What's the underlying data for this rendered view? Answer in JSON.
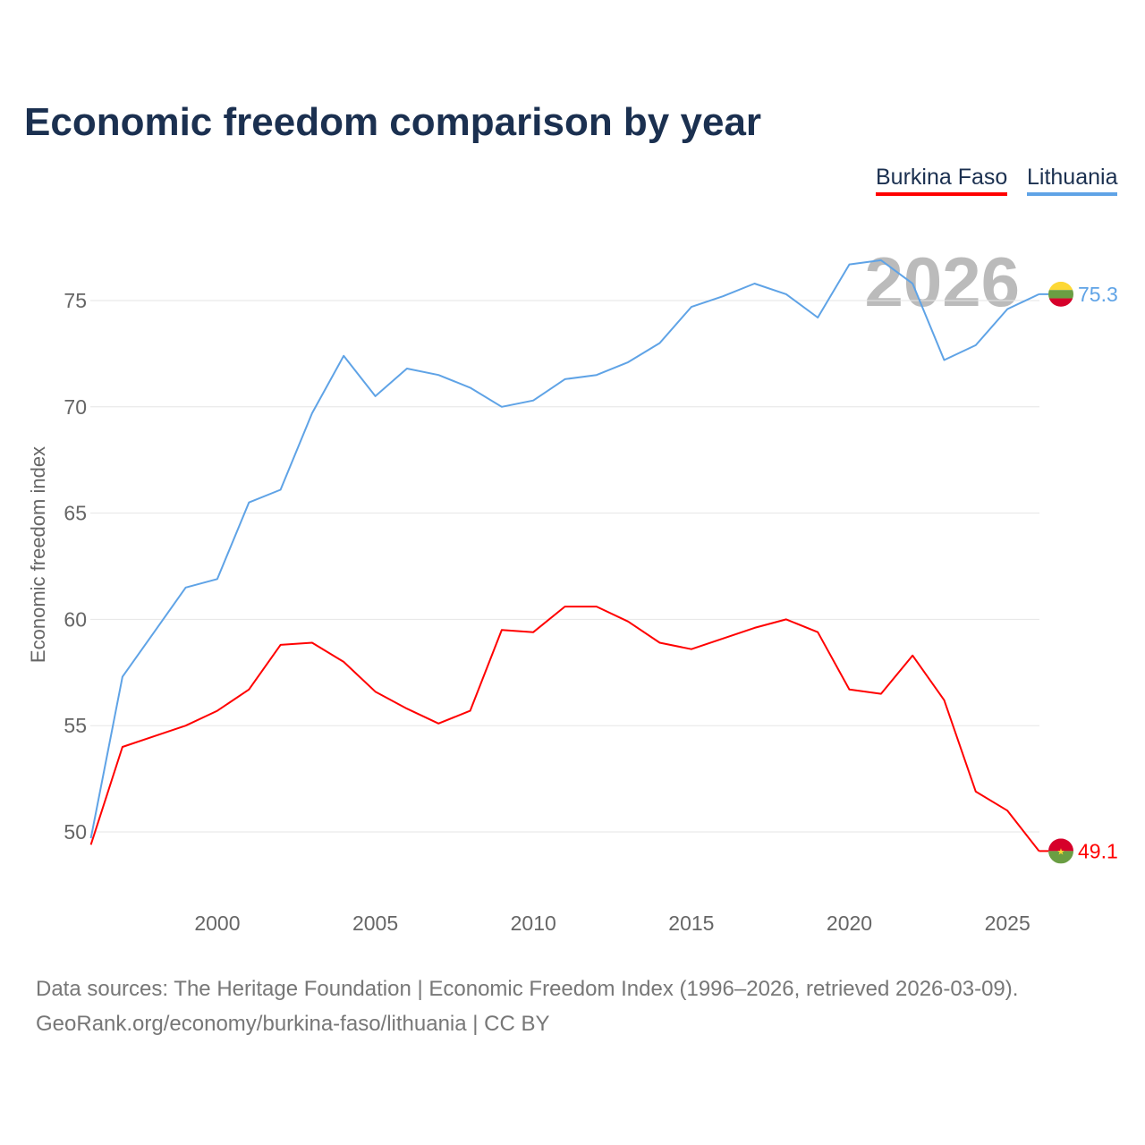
{
  "chart_data": {
    "type": "line",
    "title": "Economic freedom comparison by year",
    "ylabel": "Economic freedom index",
    "xlabel": "",
    "xlim": [
      1996,
      2026
    ],
    "ylim": [
      47.2,
      79.3
    ],
    "yticks": [
      50,
      55,
      60,
      65,
      70,
      75
    ],
    "xticks": [
      2000,
      2005,
      2010,
      2015,
      2020,
      2025
    ],
    "grid": true,
    "legend_position": "top-right",
    "watermark_year": "2026",
    "x": [
      1996,
      1997,
      1998,
      1999,
      2000,
      2001,
      2002,
      2003,
      2004,
      2005,
      2006,
      2007,
      2008,
      2009,
      2010,
      2011,
      2012,
      2013,
      2014,
      2015,
      2016,
      2017,
      2018,
      2019,
      2020,
      2021,
      2022,
      2023,
      2024,
      2025,
      2026
    ],
    "series": [
      {
        "name": "Burkina Faso",
        "color": "#ff0000",
        "end_label": "49.1",
        "flag": "burkina-faso",
        "values": [
          49.4,
          54.0,
          54.5,
          55.0,
          55.7,
          56.7,
          58.8,
          58.9,
          58.0,
          56.6,
          55.8,
          55.1,
          55.7,
          59.5,
          59.4,
          60.6,
          60.6,
          59.9,
          58.9,
          58.6,
          59.1,
          59.6,
          60.0,
          59.4,
          56.7,
          56.5,
          58.3,
          56.2,
          51.9,
          51.0,
          49.1
        ]
      },
      {
        "name": "Lithuania",
        "color": "#5fa3e6",
        "end_label": "75.3",
        "flag": "lithuania",
        "values": [
          49.7,
          57.3,
          59.4,
          61.5,
          61.9,
          65.5,
          66.1,
          69.7,
          72.4,
          70.5,
          71.8,
          71.5,
          70.9,
          70.0,
          70.3,
          71.3,
          71.5,
          72.1,
          73.0,
          74.7,
          75.2,
          75.8,
          75.3,
          74.2,
          76.7,
          76.9,
          75.8,
          72.2,
          72.9,
          74.6,
          75.3
        ]
      }
    ]
  },
  "footer": {
    "line1": "Data sources: The Heritage Foundation | Economic Freedom Index (1996–2026, retrieved 2026-03-09).",
    "line2": "GeoRank.org/economy/burkina-faso/lithuania | CC BY"
  }
}
